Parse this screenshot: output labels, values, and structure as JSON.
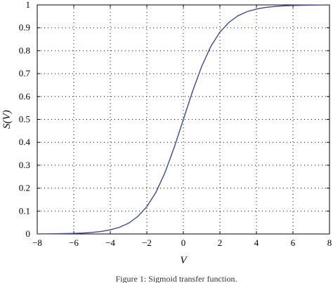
{
  "chart_data": {
    "type": "line",
    "title": "",
    "xlabel": "V",
    "ylabel": "S(V)",
    "xlim": [
      -8,
      8
    ],
    "ylim": [
      0,
      1
    ],
    "xticks": [
      "−8",
      "−6",
      "−4",
      "−2",
      "0",
      "2",
      "4",
      "6",
      "8"
    ],
    "yticks": [
      "0",
      "0.1",
      "0.2",
      "0.3",
      "0.4",
      "0.5",
      "0.6",
      "0.7",
      "0.8",
      "0.9",
      "1"
    ],
    "grid": true,
    "grid_style": "dotted",
    "series": [
      {
        "color": "#3a4a9a",
        "x": [
          -8,
          -7.5,
          -7,
          -6.5,
          -6,
          -5.5,
          -5,
          -4.5,
          -4,
          -3.5,
          -3,
          -2.5,
          -2,
          -1.5,
          -1,
          -0.5,
          0,
          0.5,
          1,
          1.5,
          2,
          2.5,
          3,
          3.5,
          4,
          4.5,
          5,
          5.5,
          6,
          6.5,
          7,
          7.5,
          8
        ],
        "y": [
          0.0003,
          0.0006,
          0.0009,
          0.0015,
          0.0025,
          0.0041,
          0.0067,
          0.011,
          0.018,
          0.029,
          0.047,
          0.076,
          0.119,
          0.182,
          0.269,
          0.378,
          0.5,
          0.622,
          0.731,
          0.818,
          0.881,
          0.924,
          0.953,
          0.971,
          0.982,
          0.989,
          0.993,
          0.996,
          0.9975,
          0.9985,
          0.9991,
          0.9994,
          0.9997
        ]
      }
    ]
  },
  "caption": "Figure 1: Sigmoid transfer function."
}
